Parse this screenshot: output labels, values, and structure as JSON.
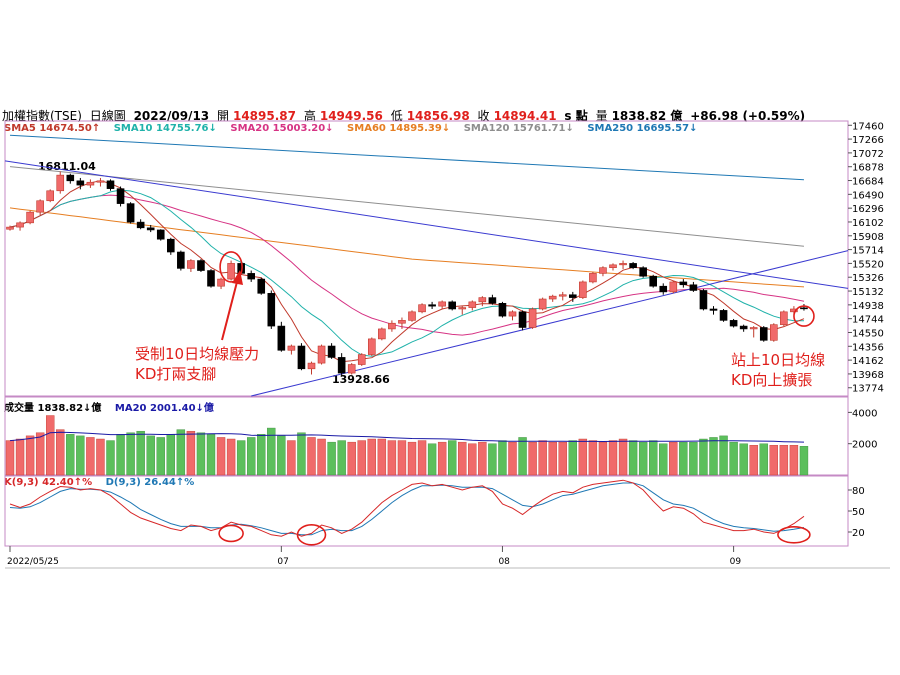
{
  "header": {
    "index_name": "加權指數(TSE)",
    "period": "日線圖",
    "date": "2022/09/13",
    "open_label": "開",
    "open_value": "14895.87",
    "high_label": "高",
    "high_value": "14949.56",
    "low_label": "低",
    "low_value": "14856.98",
    "close_label": "收",
    "close_value": "14894.41",
    "unit": "s 點",
    "volume_label": "量",
    "volume_value": "1838.82 億",
    "change": "+86.98 (+0.59%)"
  },
  "ma_legend": [
    {
      "text": "SMA5 14674.50↑",
      "color": "#c0392b"
    },
    {
      "text": "SMA10 14755.76↓",
      "color": "#20b2aa"
    },
    {
      "text": "SMA20 15003.20↓",
      "color": "#d63384"
    },
    {
      "text": "SMA60 14895.39↓",
      "color": "#e67e22"
    },
    {
      "text": "SMA120 15761.71↓",
      "color": "#8e8e8e"
    },
    {
      "text": "SMA250 16695.57↓",
      "color": "#1f78b4"
    }
  ],
  "volume_legend": [
    {
      "text": "成交量 1838.82↓億",
      "color": "#000000"
    },
    {
      "text": "MA20 2001.40↓億",
      "color": "#1a1aa6"
    }
  ],
  "kd_legend": [
    {
      "text": "K(9,3) 42.40↑%",
      "color": "#d62728"
    },
    {
      "text": "D(9,3) 26.44↑%",
      "color": "#1f78b4"
    }
  ],
  "annotations": {
    "left_line1": "受制10日均線壓力",
    "left_line2": "KD打兩支腳",
    "right_line1": "站上10日均線",
    "right_line2": "KD向上擴張",
    "high_label": "16811.04",
    "low_label": "13928.66"
  },
  "chart_data": {
    "type": "candlestick",
    "x_ticks": [
      "2022/05/25",
      "07",
      "08",
      "09"
    ],
    "x_tick_dates": [
      "2022/05/25",
      "2022/07/01",
      "2022/08/01",
      "2022/09/01"
    ],
    "price_axis": {
      "ticks": [
        17460,
        17266,
        17072,
        16878,
        16684,
        16490,
        16296,
        16102,
        15908,
        15714,
        15520,
        15326,
        15132,
        14938,
        14744,
        14550,
        14356,
        14162,
        13968,
        13774
      ],
      "range": [
        13658,
        17520
      ]
    },
    "volume_axis": {
      "ticks": [
        4000,
        2000
      ],
      "range": [
        0,
        4600
      ]
    },
    "kd_axis": {
      "ticks": [
        80,
        50,
        20
      ],
      "range": [
        0,
        100
      ]
    },
    "up_color": "#f06a6a",
    "down_color": "#000000",
    "vol_up_color": "#f06a6a",
    "vol_down_color": "#5cbf5c",
    "candles": [
      [
        16000,
        16050,
        15980,
        16030,
        2200
      ],
      [
        16030,
        16110,
        15980,
        16090,
        2300
      ],
      [
        16090,
        16260,
        16070,
        16240,
        2500
      ],
      [
        16240,
        16420,
        16200,
        16400,
        2700
      ],
      [
        16400,
        16560,
        16380,
        16540,
        3800
      ],
      [
        16540,
        16811,
        16500,
        16760,
        2900
      ],
      [
        16760,
        16780,
        16640,
        16680,
        2600
      ],
      [
        16680,
        16720,
        16560,
        16620,
        2500
      ],
      [
        16620,
        16700,
        16580,
        16660,
        2400
      ],
      [
        16660,
        16720,
        16600,
        16680,
        2300
      ],
      [
        16680,
        16700,
        16540,
        16570,
        2200
      ],
      [
        16570,
        16600,
        16320,
        16360,
        2600
      ],
      [
        16360,
        16380,
        16080,
        16100,
        2700
      ],
      [
        16100,
        16140,
        16000,
        16020,
        2800
      ],
      [
        16020,
        16060,
        15960,
        15990,
        2500
      ],
      [
        15990,
        16000,
        15840,
        15860,
        2400
      ],
      [
        15860,
        15880,
        15640,
        15680,
        2600
      ],
      [
        15680,
        15700,
        15420,
        15450,
        2900
      ],
      [
        15450,
        15580,
        15400,
        15560,
        2800
      ],
      [
        15560,
        15580,
        15400,
        15420,
        2700
      ],
      [
        15420,
        15440,
        15180,
        15200,
        2600
      ],
      [
        15200,
        15320,
        15160,
        15300,
        2400
      ],
      [
        15300,
        15560,
        15280,
        15520,
        2300
      ],
      [
        15520,
        15540,
        15360,
        15380,
        2200
      ],
      [
        15380,
        15420,
        15260,
        15300,
        2400
      ],
      [
        15300,
        15320,
        15080,
        15100,
        2600
      ],
      [
        15100,
        15140,
        14600,
        14640,
        3000
      ],
      [
        14640,
        14700,
        14280,
        14300,
        2500
      ],
      [
        14300,
        14380,
        14240,
        14360,
        2200
      ],
      [
        14360,
        14400,
        14020,
        14040,
        2700
      ],
      [
        14040,
        14140,
        13960,
        14120,
        2400
      ],
      [
        14120,
        14380,
        14100,
        14360,
        2300
      ],
      [
        14360,
        14400,
        14180,
        14200,
        2100
      ],
      [
        14200,
        14260,
        13928,
        13980,
        2200
      ],
      [
        13980,
        14120,
        13960,
        14100,
        2100
      ],
      [
        14100,
        14260,
        14080,
        14240,
        2200
      ],
      [
        14240,
        14480,
        14220,
        14460,
        2300
      ],
      [
        14460,
        14620,
        14440,
        14600,
        2300
      ],
      [
        14600,
        14720,
        14560,
        14680,
        2200
      ],
      [
        14680,
        14760,
        14600,
        14720,
        2200
      ],
      [
        14720,
        14860,
        14700,
        14840,
        2100
      ],
      [
        14840,
        14960,
        14820,
        14940,
        2200
      ],
      [
        14940,
        14980,
        14880,
        14920,
        2000
      ],
      [
        14920,
        15000,
        14880,
        14980,
        2100
      ],
      [
        14980,
        15000,
        14860,
        14880,
        2200
      ],
      [
        14880,
        14920,
        14800,
        14900,
        2100
      ],
      [
        14900,
        15000,
        14860,
        14980,
        2000
      ],
      [
        14980,
        15060,
        14920,
        15040,
        2100
      ],
      [
        15040,
        15080,
        14940,
        14960,
        2000
      ],
      [
        14960,
        14980,
        14760,
        14780,
        2200
      ],
      [
        14780,
        14860,
        14720,
        14840,
        2100
      ],
      [
        14840,
        14860,
        14580,
        14620,
        2400
      ],
      [
        14620,
        14900,
        14600,
        14880,
        2100
      ],
      [
        14880,
        15040,
        14860,
        15020,
        2200
      ],
      [
        15020,
        15080,
        14980,
        15060,
        2100
      ],
      [
        15060,
        15120,
        15000,
        15080,
        2100
      ],
      [
        15080,
        15120,
        14980,
        15040,
        2200
      ],
      [
        15040,
        15280,
        15020,
        15260,
        2300
      ],
      [
        15260,
        15400,
        15240,
        15380,
        2200
      ],
      [
        15380,
        15480,
        15340,
        15460,
        2100
      ],
      [
        15460,
        15520,
        15420,
        15500,
        2200
      ],
      [
        15500,
        15560,
        15440,
        15520,
        2300
      ],
      [
        15520,
        15540,
        15440,
        15460,
        2200
      ],
      [
        15460,
        15480,
        15320,
        15340,
        2100
      ],
      [
        15340,
        15360,
        15180,
        15200,
        2200
      ],
      [
        15200,
        15240,
        15080,
        15120,
        2000
      ],
      [
        15120,
        15280,
        15100,
        15260,
        2100
      ],
      [
        15260,
        15300,
        15180,
        15220,
        2100
      ],
      [
        15220,
        15260,
        15120,
        15140,
        2100
      ],
      [
        15140,
        15160,
        14860,
        14880,
        2300
      ],
      [
        14880,
        14920,
        14800,
        14860,
        2400
      ],
      [
        14860,
        14880,
        14700,
        14720,
        2500
      ],
      [
        14720,
        14740,
        14620,
        14640,
        2100
      ],
      [
        14640,
        14660,
        14560,
        14600,
        2000
      ],
      [
        14600,
        14640,
        14480,
        14620,
        1900
      ],
      [
        14620,
        14640,
        14420,
        14440,
        2000
      ],
      [
        14440,
        14680,
        14420,
        14660,
        1900
      ],
      [
        14660,
        14860,
        14640,
        14840,
        1900
      ],
      [
        14840,
        14920,
        14800,
        14880,
        1900
      ],
      [
        14895.87,
        14949.56,
        14856.98,
        14894.41,
        1838.82
      ]
    ],
    "kd": {
      "k": [
        60,
        55,
        60,
        70,
        78,
        85,
        84,
        80,
        82,
        80,
        72,
        60,
        48,
        40,
        35,
        30,
        25,
        22,
        30,
        28,
        22,
        26,
        34,
        30,
        28,
        22,
        16,
        14,
        20,
        14,
        18,
        30,
        26,
        18,
        24,
        34,
        48,
        62,
        72,
        80,
        88,
        90,
        86,
        88,
        84,
        80,
        84,
        86,
        78,
        60,
        54,
        45,
        56,
        66,
        74,
        78,
        76,
        84,
        88,
        90,
        92,
        94,
        90,
        80,
        64,
        50,
        56,
        54,
        46,
        34,
        30,
        26,
        22,
        22,
        24,
        20,
        18,
        24,
        32,
        42.4
      ],
      "d": [
        55,
        54,
        56,
        62,
        70,
        78,
        82,
        81,
        81,
        80,
        77,
        70,
        62,
        52,
        45,
        38,
        32,
        28,
        28,
        28,
        26,
        26,
        30,
        31,
        29,
        26,
        22,
        18,
        18,
        16,
        16,
        22,
        24,
        22,
        22,
        28,
        38,
        50,
        62,
        72,
        80,
        86,
        86,
        87,
        86,
        84,
        84,
        84,
        82,
        74,
        66,
        58,
        56,
        60,
        66,
        72,
        74,
        78,
        82,
        86,
        88,
        90,
        90,
        86,
        76,
        66,
        60,
        58,
        54,
        46,
        38,
        32,
        28,
        26,
        25,
        23,
        21,
        22,
        24,
        26.44
      ]
    }
  }
}
